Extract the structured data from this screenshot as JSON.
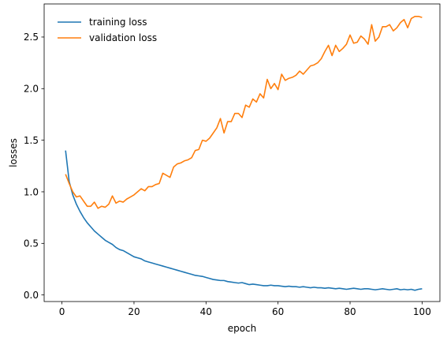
{
  "chart_data": {
    "type": "line",
    "title": "",
    "xlabel": "epoch",
    "ylabel": "losses",
    "xlim": [
      -4.95,
      104.95
    ],
    "ylim": [
      -0.0637,
      2.8208
    ],
    "xticks": [
      0,
      20,
      40,
      60,
      80,
      100
    ],
    "yticks": [
      0.0,
      0.5,
      1.0,
      1.5,
      2.0,
      2.5
    ],
    "grid": false,
    "legend_position": "upper-left",
    "series": [
      {
        "name": "training loss",
        "color": "#1f77b4",
        "x": [
          1,
          2,
          3,
          4,
          5,
          6,
          7,
          8,
          9,
          10,
          11,
          12,
          13,
          14,
          15,
          16,
          17,
          18,
          19,
          20,
          21,
          22,
          23,
          24,
          25,
          26,
          27,
          28,
          29,
          30,
          31,
          32,
          33,
          34,
          35,
          36,
          37,
          38,
          39,
          40,
          41,
          42,
          43,
          44,
          45,
          46,
          47,
          48,
          49,
          50,
          51,
          52,
          53,
          54,
          55,
          56,
          57,
          58,
          59,
          60,
          61,
          62,
          63,
          64,
          65,
          66,
          67,
          68,
          69,
          70,
          71,
          72,
          73,
          74,
          75,
          76,
          77,
          78,
          79,
          80,
          81,
          82,
          83,
          84,
          85,
          86,
          87,
          88,
          89,
          90,
          91,
          92,
          93,
          94,
          95,
          96,
          97,
          98,
          99,
          100
        ],
        "values": [
          1.4,
          1.1,
          0.97,
          0.88,
          0.81,
          0.75,
          0.7,
          0.66,
          0.62,
          0.59,
          0.56,
          0.53,
          0.51,
          0.49,
          0.46,
          0.44,
          0.43,
          0.41,
          0.39,
          0.37,
          0.36,
          0.35,
          0.33,
          0.32,
          0.31,
          0.3,
          0.29,
          0.28,
          0.27,
          0.26,
          0.25,
          0.24,
          0.23,
          0.22,
          0.21,
          0.2,
          0.19,
          0.185,
          0.18,
          0.17,
          0.16,
          0.15,
          0.145,
          0.14,
          0.14,
          0.13,
          0.125,
          0.12,
          0.115,
          0.12,
          0.11,
          0.1,
          0.105,
          0.1,
          0.095,
          0.09,
          0.09,
          0.095,
          0.09,
          0.09,
          0.085,
          0.08,
          0.085,
          0.08,
          0.08,
          0.075,
          0.08,
          0.075,
          0.07,
          0.075,
          0.07,
          0.07,
          0.065,
          0.07,
          0.065,
          0.06,
          0.065,
          0.06,
          0.055,
          0.06,
          0.065,
          0.06,
          0.055,
          0.06,
          0.06,
          0.055,
          0.05,
          0.055,
          0.06,
          0.055,
          0.05,
          0.055,
          0.06,
          0.05,
          0.055,
          0.05,
          0.055,
          0.045,
          0.055,
          0.06
        ]
      },
      {
        "name": "validation loss",
        "color": "#ff7f0e",
        "x": [
          1,
          2,
          3,
          4,
          5,
          6,
          7,
          8,
          9,
          10,
          11,
          12,
          13,
          14,
          15,
          16,
          17,
          18,
          19,
          20,
          21,
          22,
          23,
          24,
          25,
          26,
          27,
          28,
          29,
          30,
          31,
          32,
          33,
          34,
          35,
          36,
          37,
          38,
          39,
          40,
          41,
          42,
          43,
          44,
          45,
          46,
          47,
          48,
          49,
          50,
          51,
          52,
          53,
          54,
          55,
          56,
          57,
          58,
          59,
          60,
          61,
          62,
          63,
          64,
          65,
          66,
          67,
          68,
          69,
          70,
          71,
          72,
          73,
          74,
          75,
          76,
          77,
          78,
          79,
          80,
          81,
          82,
          83,
          84,
          85,
          86,
          87,
          88,
          89,
          90,
          91,
          92,
          93,
          94,
          95,
          96,
          97,
          98,
          99,
          100
        ],
        "values": [
          1.17,
          1.08,
          1.0,
          0.95,
          0.96,
          0.91,
          0.86,
          0.86,
          0.9,
          0.84,
          0.86,
          0.85,
          0.88,
          0.96,
          0.89,
          0.91,
          0.9,
          0.93,
          0.95,
          0.97,
          1.0,
          1.03,
          1.01,
          1.05,
          1.05,
          1.07,
          1.08,
          1.18,
          1.16,
          1.14,
          1.24,
          1.27,
          1.28,
          1.3,
          1.31,
          1.33,
          1.4,
          1.41,
          1.5,
          1.49,
          1.52,
          1.57,
          1.62,
          1.71,
          1.57,
          1.68,
          1.68,
          1.76,
          1.76,
          1.72,
          1.84,
          1.82,
          1.9,
          1.87,
          1.95,
          1.91,
          2.09,
          2.0,
          2.05,
          1.99,
          2.14,
          2.08,
          2.1,
          2.11,
          2.13,
          2.17,
          2.14,
          2.18,
          2.22,
          2.23,
          2.25,
          2.29,
          2.36,
          2.42,
          2.32,
          2.42,
          2.36,
          2.39,
          2.43,
          2.52,
          2.44,
          2.45,
          2.51,
          2.48,
          2.43,
          2.62,
          2.46,
          2.5,
          2.6,
          2.6,
          2.62,
          2.56,
          2.59,
          2.64,
          2.67,
          2.59,
          2.68,
          2.7,
          2.7,
          2.69
        ]
      }
    ]
  }
}
